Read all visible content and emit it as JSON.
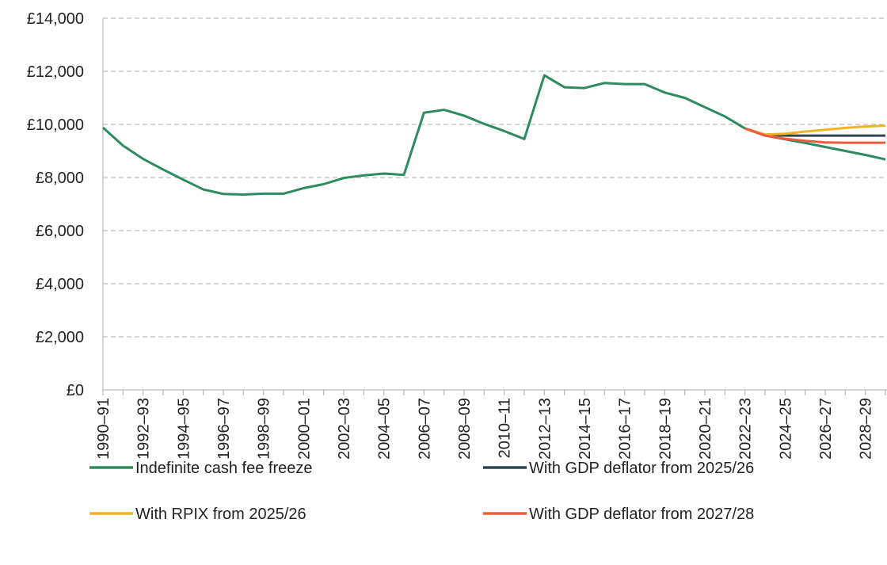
{
  "chart_data": {
    "type": "line",
    "categories": [
      "1990–91",
      null,
      "1992–93",
      null,
      "1994–95",
      null,
      "1996–97",
      null,
      "1998–99",
      null,
      "2000–01",
      null,
      "2002–03",
      null,
      "2004–05",
      null,
      "2006–07",
      null,
      "2008–09",
      null,
      "2010–11",
      null,
      "2012–13",
      null,
      "2014–15",
      null,
      "2016–17",
      null,
      "2018–19",
      null,
      "2020–21",
      null,
      "2022–23",
      null,
      "2024–25",
      null,
      "2026–27",
      null,
      "2028–29",
      null
    ],
    "series": [
      {
        "name": "Indefinite cash fee freeze",
        "color": "#2e8a60",
        "values": [
          9880,
          9200,
          8700,
          8300,
          7920,
          7550,
          7380,
          7360,
          7390,
          7390,
          7600,
          7750,
          7980,
          8080,
          8150,
          8100,
          10440,
          10550,
          10330,
          10020,
          9750,
          9450,
          11850,
          11400,
          11370,
          11560,
          11520,
          11520,
          11200,
          11000,
          10650,
          10300,
          9850,
          9580,
          9440,
          9300,
          9150,
          9000,
          8850,
          8680
        ]
      },
      {
        "name": "With GDP deflator from 2025/26",
        "color": "#2f4651",
        "values": [
          null,
          null,
          null,
          null,
          null,
          null,
          null,
          null,
          null,
          null,
          null,
          null,
          null,
          null,
          null,
          null,
          null,
          null,
          null,
          null,
          null,
          null,
          null,
          null,
          null,
          null,
          null,
          null,
          null,
          null,
          null,
          null,
          9850,
          9600,
          9580,
          9580,
          9580,
          9580,
          9580,
          9580
        ]
      },
      {
        "name": "With RPIX from 2025/26",
        "color": "#f0b323",
        "values": [
          null,
          null,
          null,
          null,
          null,
          null,
          null,
          null,
          null,
          null,
          null,
          null,
          null,
          null,
          null,
          null,
          null,
          null,
          null,
          null,
          null,
          null,
          null,
          null,
          null,
          null,
          null,
          null,
          null,
          null,
          null,
          null,
          9850,
          9620,
          9650,
          9730,
          9800,
          9870,
          9920,
          9950
        ]
      },
      {
        "name": "With GDP deflator from 2027/28",
        "color": "#ee5a3d",
        "values": [
          null,
          null,
          null,
          null,
          null,
          null,
          null,
          null,
          null,
          null,
          null,
          null,
          null,
          null,
          null,
          null,
          null,
          null,
          null,
          null,
          null,
          null,
          null,
          null,
          null,
          null,
          null,
          null,
          null,
          null,
          null,
          null,
          9850,
          9580,
          9460,
          9380,
          9320,
          9310,
          9310,
          9310
        ]
      }
    ],
    "ylim": [
      0,
      14000
    ],
    "yticks": [
      {
        "value": 0,
        "label": "£0"
      },
      {
        "value": 2000,
        "label": "£2,000"
      },
      {
        "value": 4000,
        "label": "£4,000"
      },
      {
        "value": 6000,
        "label": "£6,000"
      },
      {
        "value": 8000,
        "label": "£8,000"
      },
      {
        "value": 10000,
        "label": "£10,000"
      },
      {
        "value": 12000,
        "label": "£12,000"
      },
      {
        "value": 14000,
        "label": "£14,000"
      }
    ],
    "grid": true,
    "legend": "bottom"
  }
}
